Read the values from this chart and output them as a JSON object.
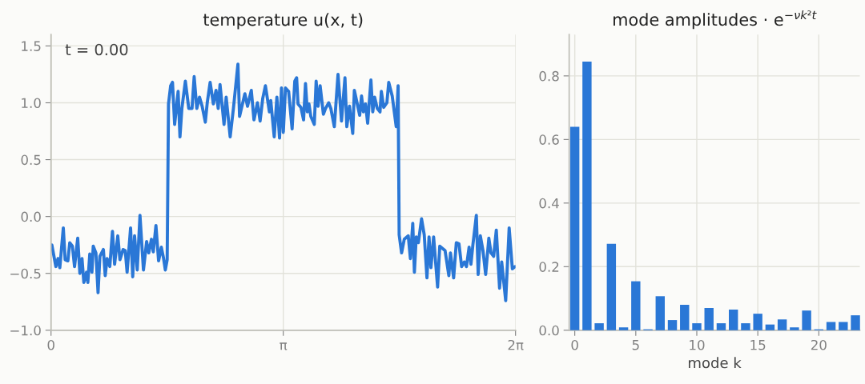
{
  "chart_data": [
    {
      "type": "line",
      "title": "temperature u(x, t)",
      "annotations": [
        "t = 0.00"
      ],
      "grid": true,
      "xlim": [
        0,
        6.28319
      ],
      "xticks": [
        0,
        {
          "value": 3.14159,
          "label": "π"
        },
        {
          "value": 6.28319,
          "label": "2π"
        }
      ],
      "ylim": [
        -1.0,
        1.6
      ],
      "yticks": [
        {
          "value": -1.0,
          "label": "−1.0"
        },
        {
          "value": -0.5,
          "label": "−0.5"
        },
        {
          "value": 0.0,
          "label": "0.0"
        },
        0.5,
        {
          "value": 1.0,
          "label": "1.0"
        },
        1.5
      ],
      "series": [
        {
          "color": "#2a77d6",
          "x": [
            0.011,
            0.065,
            0.094,
            0.119,
            0.166,
            0.191,
            0.228,
            0.253,
            0.289,
            0.318,
            0.361,
            0.39,
            0.419,
            0.444,
            0.48,
            0.498,
            0.524,
            0.553,
            0.571,
            0.607,
            0.636,
            0.661,
            0.708,
            0.733,
            0.758,
            0.795,
            0.831,
            0.86,
            0.903,
            0.932,
            0.975,
            1.004,
            1.029,
            1.076,
            1.105,
            1.13,
            1.166,
            1.203,
            1.25,
            1.293,
            1.322,
            1.358,
            1.383,
            1.419,
            1.455,
            1.492,
            1.52,
            1.546,
            1.571,
            1.589,
            1.618,
            1.643,
            1.672,
            1.719,
            1.744,
            1.77,
            1.817,
            1.863,
            1.907,
            1.936,
            1.972,
            2.008,
            2.044,
            2.087,
            2.113,
            2.152,
            2.196,
            2.232,
            2.261,
            2.286,
            2.34,
            2.369,
            2.423,
            2.467,
            2.528,
            2.55,
            2.622,
            2.658,
            2.709,
            2.745,
            2.792,
            2.828,
            2.864,
            2.9,
            2.954,
            2.972,
            3.019,
            3.055,
            3.091,
            3.117,
            3.142,
            3.171,
            3.214,
            3.261,
            3.297,
            3.322,
            3.341,
            3.38,
            3.416,
            3.442,
            3.467,
            3.489,
            3.514,
            3.561,
            3.586,
            3.612,
            3.64,
            3.684,
            3.713,
            3.756,
            3.785,
            3.832,
            3.882,
            3.929,
            3.976,
            4.001,
            4.037,
            4.081,
            4.103,
            4.139,
            4.175,
            4.2,
            4.225,
            4.254,
            4.283,
            4.327,
            4.352,
            4.377,
            4.413,
            4.45,
            4.468,
            4.5,
            4.543,
            4.568,
            4.615,
            4.669,
            4.695,
            4.709,
            4.742,
            4.778,
            4.832,
            4.861,
            4.893,
            4.915,
            4.94,
            4.969,
            5.012,
            5.048,
            5.085,
            5.113,
            5.139,
            5.175,
            5.229,
            5.258,
            5.33,
            5.381,
            5.403,
            5.446,
            5.482,
            5.518,
            5.554,
            5.59,
            5.619,
            5.655,
            5.68,
            5.706,
            5.753,
            5.778,
            5.807,
            5.843,
            5.879,
            5.922,
            5.951,
            5.987,
            6.023,
            6.067,
            6.096,
            6.15,
            6.197,
            6.24,
            6.276
          ],
          "values": [
            -0.25,
            -0.44,
            -0.37,
            -0.45,
            -0.1,
            -0.38,
            -0.39,
            -0.23,
            -0.26,
            -0.44,
            -0.19,
            -0.5,
            -0.37,
            -0.58,
            -0.49,
            -0.58,
            -0.33,
            -0.49,
            -0.26,
            -0.32,
            -0.67,
            -0.35,
            -0.29,
            -0.52,
            -0.37,
            -0.44,
            -0.13,
            -0.42,
            -0.17,
            -0.38,
            -0.29,
            -0.3,
            -0.49,
            -0.1,
            -0.53,
            -0.17,
            -0.47,
            0.01,
            -0.47,
            -0.22,
            -0.32,
            -0.2,
            -0.31,
            -0.08,
            -0.39,
            -0.27,
            -0.36,
            -0.47,
            -0.38,
            0.99,
            1.15,
            1.18,
            0.81,
            1.1,
            0.7,
            0.95,
            1.19,
            0.95,
            0.95,
            1.23,
            0.95,
            1.05,
            0.97,
            0.83,
            1.0,
            1.18,
            0.99,
            1.11,
            0.95,
            1.16,
            0.81,
            1.05,
            0.7,
            0.95,
            1.34,
            0.88,
            1.08,
            0.97,
            1.11,
            0.85,
            1.0,
            0.84,
            1.04,
            1.15,
            0.92,
            1.02,
            0.7,
            1.05,
            0.69,
            1.13,
            0.74,
            1.13,
            1.1,
            0.77,
            1.19,
            1.22,
            0.99,
            0.96,
            0.85,
            1.17,
            0.92,
            0.99,
            0.88,
            0.81,
            1.19,
            0.97,
            1.15,
            0.9,
            0.95,
            1.0,
            0.95,
            0.79,
            1.25,
            0.84,
            1.22,
            0.79,
            0.97,
            0.73,
            1.11,
            1.0,
            0.89,
            1.06,
            0.92,
            0.99,
            0.82,
            1.2,
            0.92,
            1.05,
            0.95,
            0.92,
            1.1,
            0.96,
            1.0,
            1.18,
            1.06,
            0.79,
            1.15,
            -0.16,
            -0.32,
            -0.2,
            -0.17,
            -0.37,
            -0.06,
            -0.49,
            -0.18,
            -0.23,
            -0.02,
            -0.16,
            -0.54,
            -0.18,
            -0.45,
            -0.18,
            -0.62,
            -0.26,
            -0.3,
            -0.52,
            -0.32,
            -0.54,
            -0.23,
            -0.24,
            -0.44,
            -0.4,
            -0.44,
            -0.27,
            -0.42,
            -0.25,
            0.01,
            -0.51,
            -0.17,
            -0.3,
            -0.51,
            -0.19,
            -0.32,
            -0.35,
            -0.12,
            -0.63,
            -0.4,
            -0.74,
            -0.1,
            -0.46,
            -0.44
          ]
        }
      ]
    },
    {
      "type": "bar",
      "title": "mode amplitudes · e$^{−νk²t}$",
      "xlabel": "mode k",
      "grid": true,
      "color": "#2a77d6",
      "x": [
        0,
        1,
        2,
        3,
        4,
        5,
        6,
        7,
        8,
        9,
        10,
        11,
        12,
        13,
        14,
        15,
        16,
        17,
        18,
        19,
        20,
        21,
        22,
        23
      ],
      "values": [
        0.64,
        0.845,
        0.022,
        0.272,
        0.009,
        0.154,
        0.003,
        0.107,
        0.032,
        0.08,
        0.022,
        0.07,
        0.022,
        0.065,
        0.022,
        0.052,
        0.018,
        0.034,
        0.009,
        0.062,
        0.003,
        0.026,
        0.026,
        0.047
      ],
      "xlim": [
        -0.46,
        23.36
      ],
      "xticks": [
        0,
        5,
        10,
        15,
        20
      ],
      "ylim": [
        0,
        0.93
      ],
      "yticks": [
        {
          "value": 0.0,
          "label": "0.0"
        },
        0.2,
        0.4,
        0.6,
        0.8
      ]
    }
  ]
}
